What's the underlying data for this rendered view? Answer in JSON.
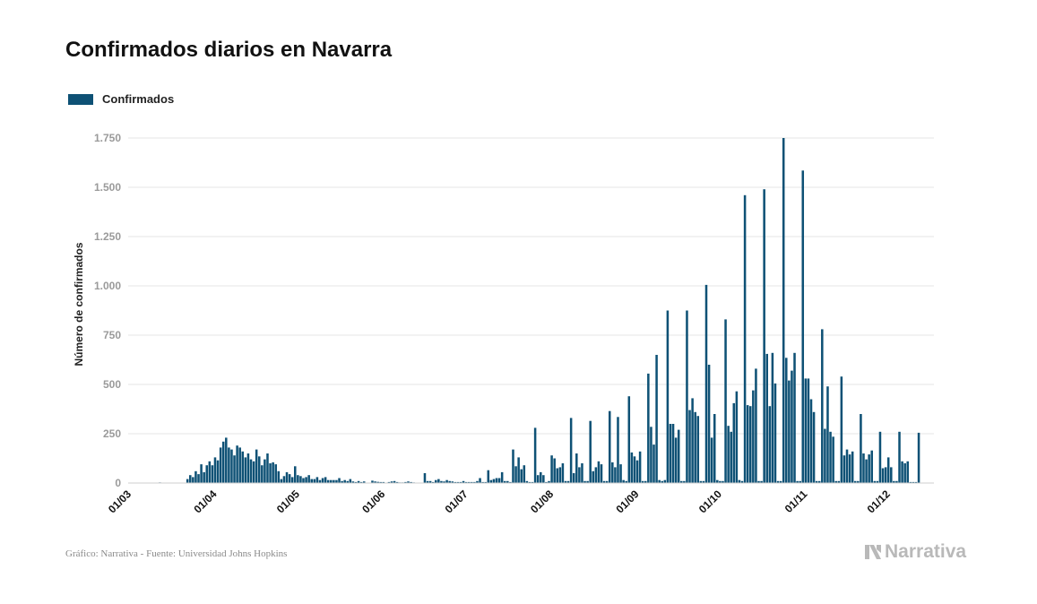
{
  "title": "Confirmados diarios en Navarra",
  "footer": "Gráfico: Narrativa - Fuente: Universidad Johns Hopkins",
  "brand": "Narrativa",
  "colors": {
    "bar": "#0e5175",
    "grid": "#e5e5e5",
    "tick": "#9a9a9a",
    "brand": "#b9b9b9"
  },
  "chart_data": {
    "type": "bar",
    "title": "Confirmados diarios en Navarra",
    "xlabel": "",
    "ylabel": "Número de confirmados",
    "ylim": [
      0,
      1750
    ],
    "yticks": [
      0,
      250,
      500,
      750,
      1000,
      1250,
      1500,
      1750
    ],
    "ytick_labels": [
      "0",
      "250",
      "500",
      "750",
      "1.000",
      "1.250",
      "1.500",
      "1.750"
    ],
    "x_start": "2020-03-01",
    "x_end": "2020-12-18",
    "xticks": [
      "2020-03-01",
      "2020-04-01",
      "2020-05-01",
      "2020-06-01",
      "2020-07-01",
      "2020-08-01",
      "2020-09-01",
      "2020-10-01",
      "2020-11-01",
      "2020-12-01"
    ],
    "xtick_labels": [
      "01/03",
      "01/04",
      "01/05",
      "01/06",
      "01/07",
      "01/08",
      "01/09",
      "01/10",
      "01/11",
      "01/12"
    ],
    "grid": true,
    "legend_position": "top-left",
    "series": [
      {
        "name": "Confirmados",
        "start_date": "2020-03-01",
        "values": [
          0,
          0,
          0,
          0,
          0,
          0,
          0,
          0,
          0,
          0,
          0,
          3,
          0,
          0,
          0,
          0,
          0,
          0,
          0,
          0,
          0,
          20,
          40,
          30,
          60,
          45,
          95,
          55,
          90,
          110,
          90,
          130,
          115,
          180,
          210,
          230,
          180,
          170,
          140,
          190,
          180,
          160,
          130,
          150,
          120,
          110,
          170,
          135,
          90,
          120,
          150,
          100,
          105,
          95,
          60,
          20,
          35,
          55,
          45,
          30,
          85,
          40,
          35,
          25,
          30,
          40,
          20,
          20,
          30,
          15,
          25,
          30,
          15,
          15,
          15,
          15,
          25,
          10,
          15,
          10,
          20,
          8,
          5,
          10,
          5,
          8,
          0,
          0,
          12,
          8,
          6,
          5,
          5,
          0,
          5,
          8,
          10,
          5,
          3,
          3,
          5,
          8,
          5,
          3,
          0,
          0,
          0,
          50,
          10,
          10,
          5,
          15,
          20,
          10,
          8,
          15,
          10,
          8,
          5,
          5,
          5,
          10,
          5,
          5,
          5,
          5,
          10,
          25,
          5,
          5,
          65,
          15,
          20,
          25,
          25,
          55,
          10,
          10,
          5,
          170,
          85,
          130,
          70,
          90,
          10,
          5,
          5,
          280,
          40,
          55,
          40,
          5,
          10,
          140,
          125,
          75,
          80,
          100,
          10,
          10,
          330,
          50,
          150,
          80,
          100,
          10,
          10,
          315,
          60,
          80,
          110,
          95,
          10,
          10,
          365,
          105,
          80,
          335,
          95,
          15,
          10,
          440,
          155,
          135,
          115,
          160,
          10,
          10,
          555,
          285,
          195,
          650,
          15,
          10,
          15,
          875,
          300,
          300,
          230,
          270,
          10,
          10,
          875,
          370,
          430,
          360,
          340,
          10,
          10,
          1005,
          600,
          230,
          350,
          15,
          10,
          10,
          830,
          290,
          260,
          405,
          465,
          15,
          10,
          1460,
          395,
          390,
          470,
          580,
          10,
          10,
          1490,
          655,
          390,
          660,
          505,
          10,
          10,
          1750,
          635,
          520,
          570,
          660,
          10,
          10,
          1585,
          530,
          530,
          425,
          360,
          10,
          10,
          780,
          275,
          490,
          260,
          235,
          10,
          10,
          540,
          140,
          170,
          145,
          160,
          10,
          10,
          350,
          150,
          120,
          145,
          165,
          10,
          10,
          260,
          75,
          80,
          130,
          80,
          10,
          10,
          260,
          110,
          100,
          110,
          5,
          5,
          5,
          255
        ]
      }
    ]
  }
}
